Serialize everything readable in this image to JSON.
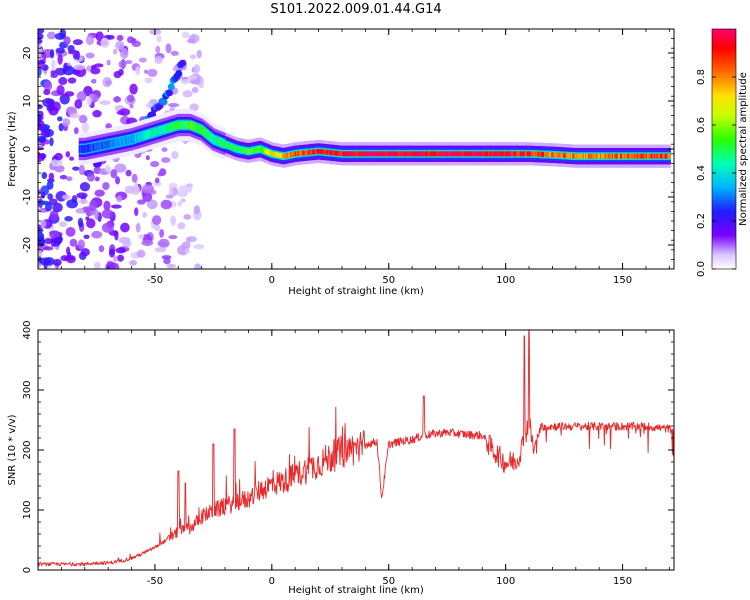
{
  "title": "S101.2022.009.01.44.G14",
  "chart_data": [
    {
      "type": "heatmap",
      "xlabel": "Height of straight line (km)",
      "ylabel": "Frequency (Hz)",
      "xlim": [
        -100,
        172
      ],
      "ylim": [
        -25,
        25
      ],
      "xticks": [
        -50,
        0,
        50,
        100,
        150
      ],
      "yticks": [
        -20,
        -10,
        0,
        10,
        20
      ],
      "colorbar": {
        "label": "Normalized spectral amplitude",
        "range": [
          0,
          1
        ],
        "ticks": [
          0.0,
          0.2,
          0.4,
          0.6,
          0.8
        ],
        "tick_labels": [
          "0.0",
          "0.2",
          "0.4",
          "0.6",
          "0.8"
        ],
        "colormap": "rainbow"
      },
      "ridge": {
        "x": [
          -80,
          -70,
          -60,
          -50,
          -40,
          -35,
          -30,
          -25,
          -20,
          -15,
          -10,
          -5,
          0,
          5,
          10,
          20,
          30,
          40,
          50,
          60,
          70,
          80,
          90,
          100,
          110,
          120,
          130,
          140,
          150,
          160,
          170
        ],
        "y": [
          0,
          1,
          2,
          3.5,
          5,
          5,
          4,
          2,
          1,
          0,
          -0.5,
          0,
          -1,
          -1.5,
          -1,
          -0.5,
          -1,
          -1,
          -1,
          -1,
          -1,
          -1,
          -1,
          -1,
          -1,
          -1.2,
          -1.5,
          -1.5,
          -1.5,
          -1.5,
          -1.5
        ],
        "amplitude": [
          0.25,
          0.3,
          0.35,
          0.45,
          0.5,
          0.55,
          0.5,
          0.45,
          0.5,
          0.5,
          0.55,
          0.55,
          0.7,
          0.75,
          0.85,
          0.95,
          0.95,
          1.0,
          1.0,
          1.0,
          1.0,
          1.0,
          1.0,
          0.95,
          0.9,
          0.85,
          0.8,
          0.8,
          0.85,
          0.9,
          0.9
        ]
      },
      "branch": {
        "x": [
          -75,
          -65,
          -55,
          -50,
          -45,
          -42,
          -40,
          -38
        ],
        "y": [
          -3,
          1,
          5,
          8,
          11,
          14,
          16,
          18
        ],
        "amplitude": [
          0.2,
          0.25,
          0.3,
          0.3,
          0.3,
          0.3,
          0.25,
          0.25
        ]
      }
    },
    {
      "type": "line",
      "xlabel": "Height of straight line (km)",
      "ylabel": "SNR (10 * v/v)",
      "xlim": [
        -100,
        172
      ],
      "ylim": [
        0,
        400
      ],
      "xticks": [
        -50,
        0,
        50,
        100,
        150
      ],
      "yticks": [
        0,
        100,
        200,
        300,
        400
      ],
      "color": "#e8282a",
      "series": [
        {
          "x": [
            -100,
            -90,
            -80,
            -75,
            -70,
            -65,
            -60,
            -55,
            -50,
            -45,
            -40,
            -35,
            -30,
            -25,
            -20,
            -15,
            -10,
            -5,
            0,
            5,
            10,
            15,
            20,
            25,
            30,
            35,
            40,
            45,
            47,
            50,
            55,
            60,
            65,
            70,
            75,
            80,
            85,
            90,
            95,
            100,
            105,
            108,
            110,
            112,
            115,
            120,
            130,
            140,
            150,
            160,
            172
          ],
          "y": [
            10,
            10,
            10,
            12,
            12,
            15,
            20,
            28,
            38,
            50,
            65,
            70,
            90,
            100,
            108,
            115,
            120,
            135,
            145,
            150,
            160,
            170,
            180,
            190,
            200,
            205,
            210,
            215,
            120,
            210,
            215,
            218,
            225,
            228,
            230,
            228,
            226,
            225,
            200,
            180,
            185,
            220,
            250,
            200,
            240,
            240,
            240,
            240,
            240,
            240,
            235
          ]
        }
      ],
      "spikes": [
        {
          "x": -40,
          "y": 165
        },
        {
          "x": -37,
          "y": 145
        },
        {
          "x": -25,
          "y": 210
        },
        {
          "x": -16,
          "y": 235
        },
        {
          "x": 65,
          "y": 290
        },
        {
          "x": 108,
          "y": 390
        },
        {
          "x": 110,
          "y": 395
        }
      ]
    }
  ]
}
